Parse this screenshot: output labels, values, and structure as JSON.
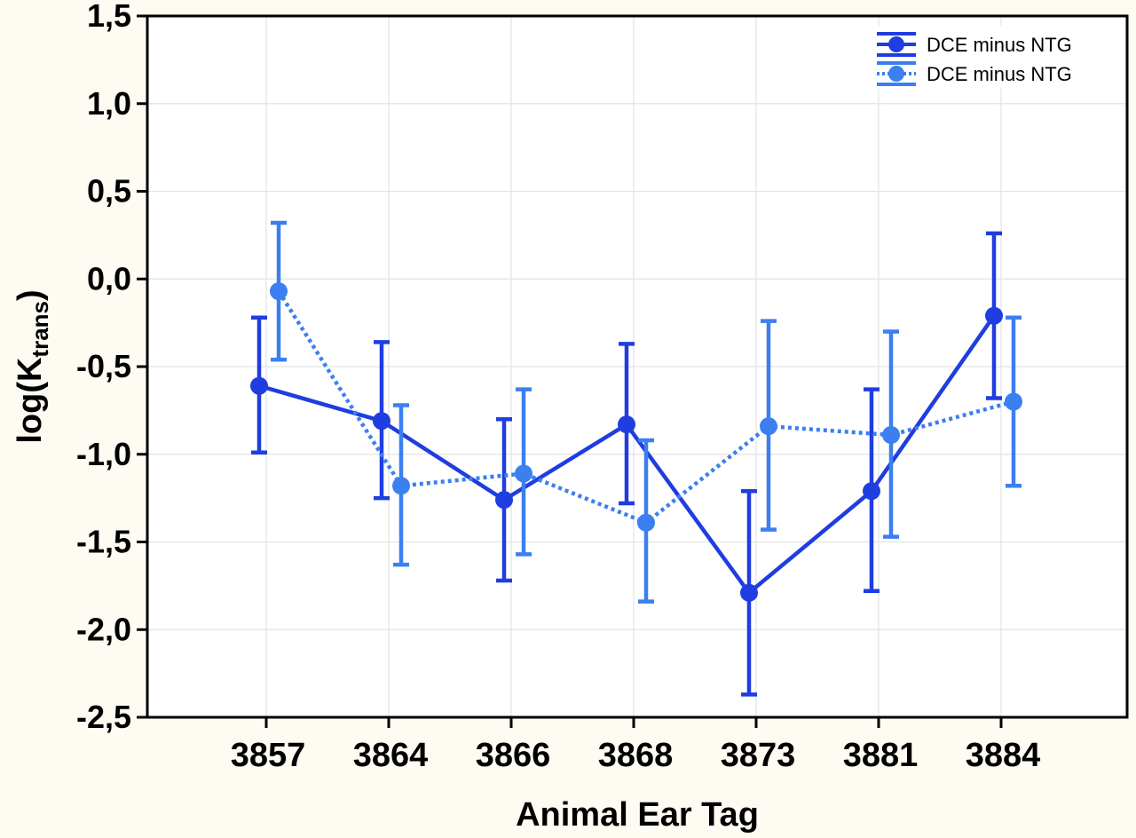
{
  "chart_data": {
    "type": "line",
    "title": "",
    "xlabel": "Animal Ear Tag",
    "ylabel": "log(K",
    "ylabel_sub": "trans",
    "ylabel_close": ")",
    "categories": [
      "3857",
      "3864",
      "3866",
      "3868",
      "3873",
      "3881",
      "3884"
    ],
    "ylim": [
      -2.5,
      1.5
    ],
    "yticks": [
      1.5,
      1.0,
      0.5,
      0.0,
      -0.5,
      -1.0,
      -1.5,
      -2.0,
      -2.5
    ],
    "ytick_labels": [
      "1,5",
      "1,0",
      "0,5",
      "0,0",
      "-0,5",
      "-1,0",
      "-1,5",
      "-2,0",
      "-2,5"
    ],
    "grid": true,
    "legend_position": "top-right",
    "series": [
      {
        "name": "DCE minus NTG",
        "color": "#1f3de0",
        "line_style": "solid",
        "values": [
          -0.61,
          -0.81,
          -1.26,
          -0.83,
          -1.79,
          -1.21,
          -0.21
        ],
        "lower": [
          -0.99,
          -1.25,
          -1.72,
          -1.28,
          -2.37,
          -1.78,
          -0.68
        ],
        "upper": [
          -0.22,
          -0.36,
          -0.8,
          -0.37,
          -1.21,
          -0.63,
          0.26
        ]
      },
      {
        "name": "DCE minus NTG",
        "color": "#3b7ff0",
        "line_style": "dotted",
        "values": [
          -0.07,
          -1.18,
          -1.11,
          -1.39,
          -0.84,
          -0.89,
          -0.7
        ],
        "lower": [
          -0.46,
          -1.63,
          -1.57,
          -1.84,
          -1.43,
          -1.47,
          -1.18
        ],
        "upper": [
          0.32,
          -0.72,
          -0.63,
          -0.92,
          -0.24,
          -0.3,
          -0.22
        ]
      }
    ]
  }
}
